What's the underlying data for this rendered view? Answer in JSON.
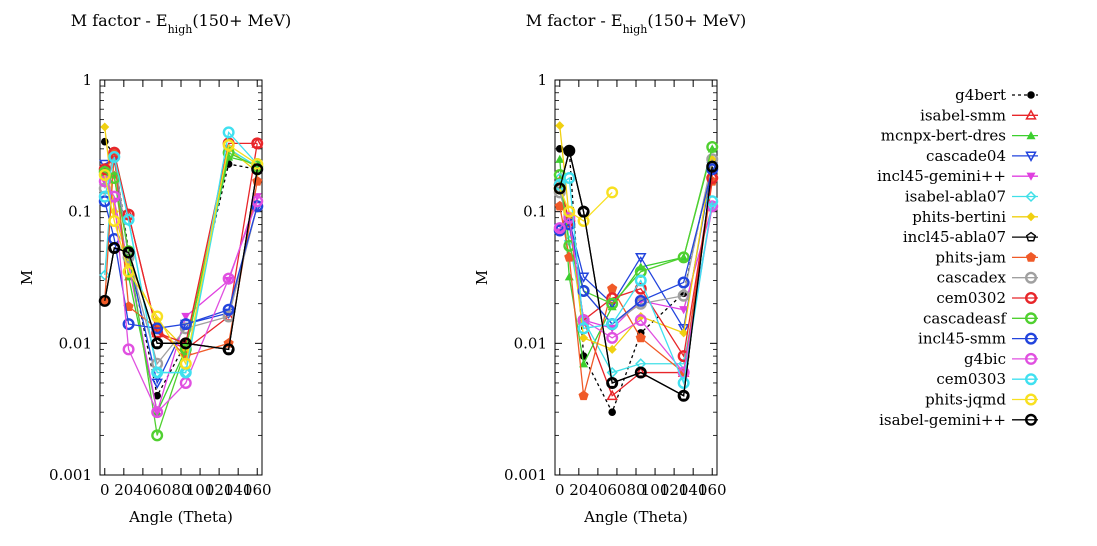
{
  "chart_data": [
    {
      "type": "line",
      "title_main": "M factor - E",
      "title_sub": "high",
      "title_tail": "(150+ MeV)",
      "xlabel": "Angle (Theta)",
      "ylabel": "M",
      "xlim": [
        -5,
        165
      ],
      "ylim": [
        0.001,
        1
      ],
      "yscale": "log",
      "x_ticks": [
        "0",
        "20",
        "40",
        "60",
        "80",
        "100",
        "120",
        "140",
        "160"
      ],
      "y_ticks": [
        "0.001",
        "0.01",
        "0.1",
        "1"
      ],
      "x": [
        0,
        10,
        25,
        55,
        85,
        130,
        160
      ],
      "series": [
        {
          "name": "g4bert",
          "values": [
            0.34,
            0.27,
            0.05,
            0.004,
            0.01,
            0.23,
            0.21
          ]
        },
        {
          "name": "isabel-smm",
          "values": [
            0.2,
            0.27,
            0.095,
            0.012,
            0.009,
            0.016,
            0.33
          ]
        },
        {
          "name": "mcnpx-bert-dres",
          "values": [
            0.21,
            0.19,
            0.032,
            0.003,
            0.009,
            0.26,
            0.23
          ]
        },
        {
          "name": "cascade04",
          "values": [
            0.23,
            0.25,
            0.045,
            0.005,
            0.014,
            0.017,
            0.11
          ]
        },
        {
          "name": "incl45-gemini++",
          "values": [
            0.17,
            0.12,
            0.04,
            0.003,
            0.016,
            0.03,
            0.13
          ]
        },
        {
          "name": "isabel-abla07",
          "values": [
            0.033,
            0.28,
            0.085,
            0.006,
            0.006,
            0.3,
            0.22
          ]
        },
        {
          "name": "phits-bertini",
          "values": [
            0.44,
            0.1,
            0.04,
            0.015,
            0.009,
            0.3,
            0.2
          ]
        },
        {
          "name": "incl45-abla07",
          "values": [
            0.021,
            0.053,
            0.05,
            0.01,
            0.01,
            0.009,
            0.21
          ]
        },
        {
          "name": "phits-jam",
          "values": [
            0.021,
            0.28,
            0.019,
            0.013,
            0.008,
            0.01,
            0.17
          ]
        },
        {
          "name": "cascadex",
          "values": [
            0.15,
            0.28,
            0.045,
            0.007,
            0.013,
            0.016,
            0.11
          ]
        },
        {
          "name": "cem0302",
          "values": [
            0.21,
            0.28,
            0.095,
            0.012,
            0.01,
            0.33,
            0.33
          ]
        },
        {
          "name": "cascadeasf",
          "values": [
            0.2,
            0.18,
            0.05,
            0.002,
            0.009,
            0.28,
            0.22
          ]
        },
        {
          "name": "incl45-smm",
          "values": [
            0.12,
            0.062,
            0.014,
            0.013,
            0.014,
            0.018,
            0.11
          ]
        },
        {
          "name": "g4bic",
          "values": [
            0.17,
            0.13,
            0.009,
            0.003,
            0.005,
            0.031,
            0.12
          ]
        },
        {
          "name": "cem0303",
          "values": [
            0.13,
            0.26,
            0.087,
            0.006,
            0.006,
            0.4,
            0.23
          ]
        },
        {
          "name": "phits-jqmd",
          "values": [
            0.19,
            0.085,
            0.035,
            0.016,
            0.007,
            0.32,
            0.23
          ]
        },
        {
          "name": "isabel-gemini++",
          "values": [
            0.021,
            0.053,
            0.049,
            0.01,
            0.01,
            0.009,
            0.21
          ]
        }
      ]
    },
    {
      "type": "line",
      "title_main": "M factor - E",
      "title_sub": "high",
      "title_tail": "(150+ MeV)",
      "xlabel": "Angle (Theta)",
      "ylabel": "M",
      "xlim": [
        -5,
        165
      ],
      "ylim": [
        0.001,
        1
      ],
      "yscale": "log",
      "x_ticks": [
        "0",
        "20",
        "40",
        "60",
        "80",
        "100",
        "120",
        "140",
        "160"
      ],
      "y_ticks": [
        "0.001",
        "0.01",
        "0.1",
        "1"
      ],
      "x": [
        0,
        10,
        25,
        55,
        85,
        130,
        160
      ],
      "series": [
        {
          "name": "g4bert",
          "values": [
            0.3,
            0.29,
            0.008,
            0.003,
            0.012,
            0.024,
            0.24
          ]
        },
        {
          "name": "isabel-smm",
          "values": [
            0.17,
            0.08,
            0.015,
            0.004,
            0.006,
            0.006,
            0.19
          ]
        },
        {
          "name": "mcnpx-bert-dres",
          "values": [
            0.25,
            0.032,
            0.007,
            0.019,
            0.038,
            0.045,
            0.3
          ]
        },
        {
          "name": "cascade04",
          "values": [
            0.075,
            0.085,
            0.032,
            0.02,
            0.045,
            0.013,
            0.22
          ]
        },
        {
          "name": "incl45-gemini++",
          "values": [
            0.07,
            0.08,
            0.015,
            0.013,
            0.021,
            0.018,
            0.11
          ]
        },
        {
          "name": "isabel-abla07",
          "values": [
            0.18,
            0.06,
            0.015,
            0.006,
            0.007,
            0.007,
            0.11
          ]
        },
        {
          "name": "phits-bertini",
          "values": [
            0.45,
            0.09,
            0.011,
            0.009,
            0.016,
            0.012,
            0.25
          ]
        },
        {
          "name": "incl45-abla07",
          "values": [
            0.15,
            0.29,
            0.1,
            0.005,
            0.006,
            0.004,
            0.22
          ]
        },
        {
          "name": "phits-jam",
          "values": [
            0.11,
            0.045,
            0.004,
            0.026,
            0.011,
            0.006,
            0.17
          ]
        },
        {
          "name": "cascadex",
          "values": [
            0.14,
            0.08,
            0.025,
            0.014,
            0.02,
            0.023,
            0.25
          ]
        },
        {
          "name": "cem0302",
          "values": [
            0.16,
            0.085,
            0.015,
            0.022,
            0.026,
            0.008,
            0.18
          ]
        },
        {
          "name": "cascadeasf",
          "values": [
            0.19,
            0.055,
            0.025,
            0.02,
            0.035,
            0.045,
            0.31
          ]
        },
        {
          "name": "incl45-smm",
          "values": [
            0.072,
            0.08,
            0.025,
            0.014,
            0.021,
            0.029,
            0.21
          ]
        },
        {
          "name": "g4bic",
          "values": [
            0.075,
            0.09,
            0.015,
            0.011,
            0.015,
            0.006,
            0.11
          ]
        },
        {
          "name": "cem0303",
          "values": [
            0.16,
            0.18,
            0.013,
            0.014,
            0.03,
            0.005,
            0.12
          ]
        },
        {
          "name": "phits-jqmd",
          "values": [
            0.15,
            0.1,
            0.085,
            0.14,
            null,
            null,
            null
          ]
        },
        {
          "name": "isabel-gemini++",
          "values": [
            0.15,
            0.29,
            0.1,
            0.005,
            0.006,
            0.004,
            0.22
          ]
        }
      ]
    }
  ],
  "legend": {
    "placement": "right",
    "entries": [
      {
        "name": "g4bert",
        "color": "#000000",
        "marker": "dot",
        "dash": "3,3"
      },
      {
        "name": "isabel-smm",
        "color": "#e8262a",
        "marker": "tri-up-open",
        "dash": ""
      },
      {
        "name": "mcnpx-bert-dres",
        "color": "#3ccf2e",
        "marker": "tri-up-filled",
        "dash": ""
      },
      {
        "name": "cascade04",
        "color": "#2244dd",
        "marker": "tri-down-open",
        "dash": ""
      },
      {
        "name": "incl45-gemini++",
        "color": "#e040e0",
        "marker": "tri-down-filled",
        "dash": ""
      },
      {
        "name": "isabel-abla07",
        "color": "#40e0e8",
        "marker": "diamond-open",
        "dash": ""
      },
      {
        "name": "phits-bertini",
        "color": "#f0d010",
        "marker": "diamond-filled",
        "dash": ""
      },
      {
        "name": "incl45-abla07",
        "color": "#000000",
        "marker": "pentagon-open",
        "dash": ""
      },
      {
        "name": "phits-jam",
        "color": "#f05a28",
        "marker": "pentagon-filled",
        "dash": ""
      },
      {
        "name": "cascadex",
        "color": "#a0a0a0",
        "marker": "circle-open-thick",
        "dash": ""
      },
      {
        "name": "cem0302",
        "color": "#e8262a",
        "marker": "circle-open-thick",
        "dash": ""
      },
      {
        "name": "cascadeasf",
        "color": "#50d030",
        "marker": "circle-open-thick",
        "dash": ""
      },
      {
        "name": "incl45-smm",
        "color": "#2244dd",
        "marker": "circle-open-thick",
        "dash": ""
      },
      {
        "name": "g4bic",
        "color": "#e050e0",
        "marker": "circle-open-thick",
        "dash": ""
      },
      {
        "name": "cem0303",
        "color": "#40e0f0",
        "marker": "circle-open-thick",
        "dash": ""
      },
      {
        "name": "phits-jqmd",
        "color": "#f8e020",
        "marker": "circle-open-thick",
        "dash": ""
      },
      {
        "name": "isabel-gemini++",
        "color": "#000000",
        "marker": "circle-open-thick",
        "dash": ""
      }
    ]
  }
}
